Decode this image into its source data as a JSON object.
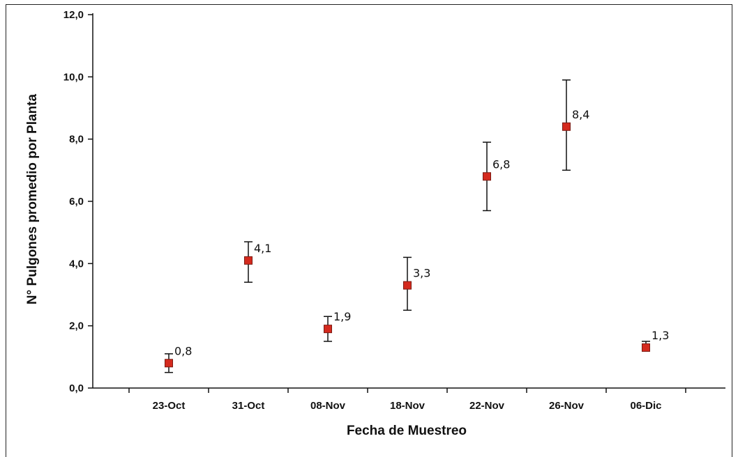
{
  "chart_data": {
    "type": "scatter",
    "title": "",
    "xlabel": "Fecha de Muestreo",
    "ylabel": "N° Pulgones promedio por Planta",
    "categories": [
      "23-Oct",
      "31-Oct",
      "08-Nov",
      "18-Nov",
      "22-Nov",
      "26-Nov",
      "06-Dic"
    ],
    "values": [
      0.8,
      4.1,
      1.9,
      3.3,
      6.8,
      8.4,
      1.3
    ],
    "value_labels": [
      "0,8",
      "4,1",
      "1,9",
      "3,3",
      "6,8",
      "8,4",
      "1,3"
    ],
    "error_low": [
      0.5,
      3.4,
      1.5,
      2.5,
      5.7,
      7.0,
      1.2
    ],
    "error_high": [
      1.1,
      4.7,
      2.3,
      4.2,
      7.9,
      9.9,
      1.5
    ],
    "ylim": [
      0,
      12
    ],
    "yticks": [
      0,
      2,
      4,
      6,
      8,
      10,
      12
    ],
    "ytick_labels": [
      "0,0",
      "2,0",
      "4,0",
      "6,0",
      "8,0",
      "10,0",
      "12,0"
    ],
    "grid": false,
    "legend": "none",
    "marker_color": "#d42a1e",
    "marker_edge_color": "#7a1a12",
    "line_color": "#111111"
  }
}
